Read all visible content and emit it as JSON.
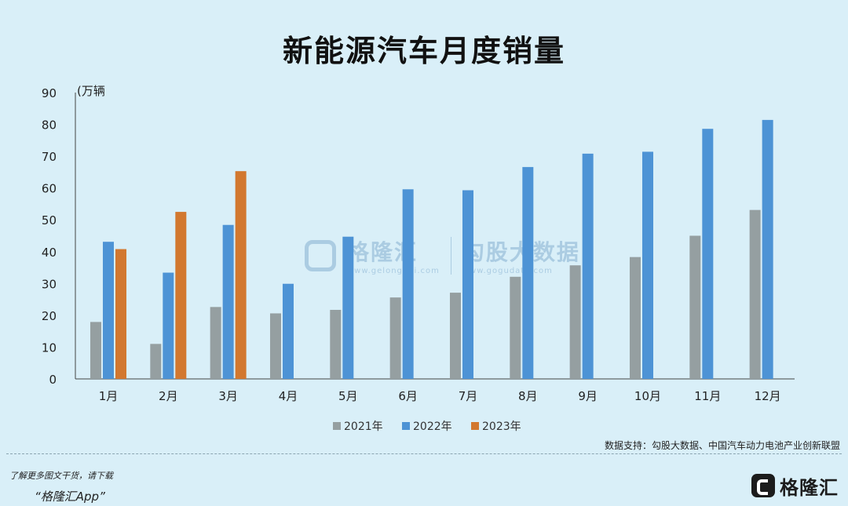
{
  "chart_data": {
    "type": "bar",
    "title": "新能源汽车月度销量",
    "unit_label": "(万辆",
    "categories": [
      "1月",
      "2月",
      "3月",
      "4月",
      "5月",
      "6月",
      "7月",
      "8月",
      "9月",
      "10月",
      "11月",
      "12月"
    ],
    "series": [
      {
        "name": "2021年",
        "color": "#959fa1",
        "values": [
          17.9,
          11.0,
          22.6,
          20.6,
          21.7,
          25.6,
          27.1,
          32.1,
          35.7,
          38.3,
          45.0,
          53.1
        ]
      },
      {
        "name": "2022年",
        "color": "#4d93d5",
        "values": [
          43.1,
          33.4,
          48.4,
          29.9,
          44.7,
          59.6,
          59.3,
          66.6,
          70.8,
          71.4,
          78.6,
          81.4
        ]
      },
      {
        "name": "2023年",
        "color": "#d2782f",
        "values": [
          40.8,
          52.5,
          65.3,
          null,
          null,
          null,
          null,
          null,
          null,
          null,
          null,
          null
        ]
      }
    ],
    "y_ticks": [
      0,
      10,
      20,
      30,
      40,
      50,
      60,
      70,
      80,
      90
    ],
    "ylim": [
      0,
      90
    ],
    "grid": false,
    "legend_position": "bottom-center"
  },
  "source_text": "数据支持：勾股大数据、中国汽车动力电池产业创新联盟",
  "watermark": {
    "brand1": "格隆汇",
    "brand1_url": "www.gelonghui.com",
    "brand2": "勾股大数据",
    "brand2_url": "www.gogudata.com"
  },
  "footer": {
    "note": "了解更多图文干货，请下载",
    "app": "“格隆汇App”",
    "brand": "格隆汇"
  }
}
